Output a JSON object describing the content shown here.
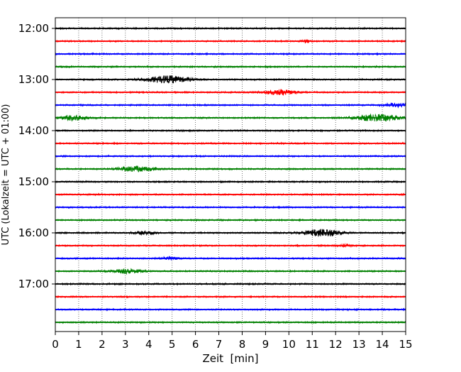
{
  "chart_data": {
    "type": "line",
    "subtype": "helicorder",
    "xlabel": "Zeit  [min]",
    "ylabel": "UTC (Lokalzeit = UTC + 01:00)",
    "xlim": [
      0,
      15
    ],
    "x_ticks": [
      "0",
      "1",
      "2",
      "3",
      "4",
      "5",
      "6",
      "7",
      "8",
      "9",
      "10",
      "11",
      "12",
      "13",
      "14",
      "15"
    ],
    "y_ticks": [
      "12:00",
      "13:00",
      "14:00",
      "15:00",
      "16:00",
      "17:00"
    ],
    "trace_interval_min": 15,
    "trace_start": "12:00",
    "trace_count": 24,
    "trace_colors": [
      "#000000",
      "#ff0000",
      "#0000ff",
      "#008000"
    ],
    "grid": "vertical dotted",
    "events": [
      {
        "trace": "12:15",
        "center_min": 10.7,
        "halfwidth_min": 0.3,
        "amplitude": 0.25
      },
      {
        "trace": "13:00",
        "center_min": 4.8,
        "halfwidth_min": 1.3,
        "amplitude": 0.6
      },
      {
        "trace": "13:15",
        "center_min": 9.6,
        "halfwidth_min": 1.0,
        "amplitude": 0.4
      },
      {
        "trace": "13:30",
        "center_min": 14.6,
        "halfwidth_min": 0.8,
        "amplitude": 0.3
      },
      {
        "trace": "13:45",
        "center_min": 0.8,
        "halfwidth_min": 0.8,
        "amplitude": 0.4
      },
      {
        "trace": "13:45",
        "center_min": 13.8,
        "halfwidth_min": 1.3,
        "amplitude": 0.6
      },
      {
        "trace": "14:45",
        "center_min": 3.5,
        "halfwidth_min": 1.1,
        "amplitude": 0.4
      },
      {
        "trace": "16:00",
        "center_min": 3.8,
        "halfwidth_min": 0.7,
        "amplitude": 0.25
      },
      {
        "trace": "16:00",
        "center_min": 11.4,
        "halfwidth_min": 1.1,
        "amplitude": 0.6
      },
      {
        "trace": "16:15",
        "center_min": 12.4,
        "halfwidth_min": 0.3,
        "amplitude": 0.25
      },
      {
        "trace": "16:30",
        "center_min": 4.9,
        "halfwidth_min": 0.5,
        "amplitude": 0.25
      },
      {
        "trace": "16:45",
        "center_min": 3.1,
        "halfwidth_min": 0.9,
        "amplitude": 0.35
      }
    ]
  }
}
